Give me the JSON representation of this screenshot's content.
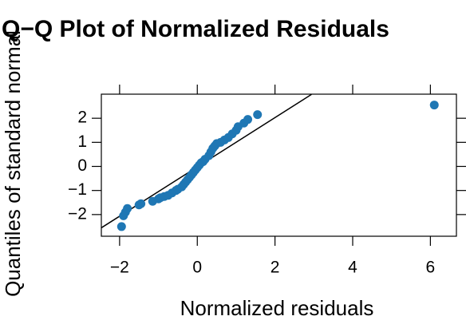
{
  "chart_data": {
    "type": "scatter",
    "title": "Q−Q Plot of Normalized Residuals",
    "x_label": "Normalized residuals",
    "y_label": "Quantiles of standard normal",
    "color": "#1f77b4",
    "x": [
      -1.95,
      -1.9,
      -1.85,
      -1.8,
      -1.5,
      -1.45,
      -1.15,
      -1.0,
      -0.95,
      -0.85,
      -0.75,
      -0.65,
      -0.55,
      -0.5,
      -0.4,
      -0.35,
      -0.3,
      -0.25,
      -0.2,
      -0.15,
      -0.1,
      -0.05,
      0,
      0.05,
      0.1,
      0.15,
      0.2,
      0.3,
      0.35,
      0.4,
      0.45,
      0.5,
      0.6,
      0.7,
      0.8,
      0.9,
      1.0,
      1.05,
      1.2,
      1.3,
      1.55,
      6.1
    ],
    "values": [
      -2.5,
      -2.05,
      -1.9,
      -1.75,
      -1.6,
      -1.55,
      -1.45,
      -1.35,
      -1.3,
      -1.25,
      -1.2,
      -1.1,
      -1.0,
      -0.95,
      -0.85,
      -0.75,
      -0.65,
      -0.55,
      -0.45,
      -0.35,
      -0.25,
      -0.15,
      -0.05,
      0.05,
      0.15,
      0.2,
      0.3,
      0.45,
      0.6,
      0.75,
      0.85,
      0.95,
      1.0,
      1.1,
      1.2,
      1.35,
      1.5,
      1.65,
      1.8,
      1.95,
      2.15,
      2.55
    ],
    "reference_line": {
      "x": [
        -2.47,
        2.94
      ],
      "y": [
        -2.55,
        2.99
      ]
    },
    "xlim": [
      -2.47,
      6.67
    ],
    "ylim": [
      -2.9,
      3.0
    ],
    "xticks": [
      {
        "value": -2,
        "label": "−2"
      },
      0,
      2,
      4,
      6
    ],
    "yticks": [
      {
        "value": -2,
        "label": "−2"
      },
      {
        "value": -1,
        "label": "−1"
      },
      0,
      1,
      2
    ]
  }
}
